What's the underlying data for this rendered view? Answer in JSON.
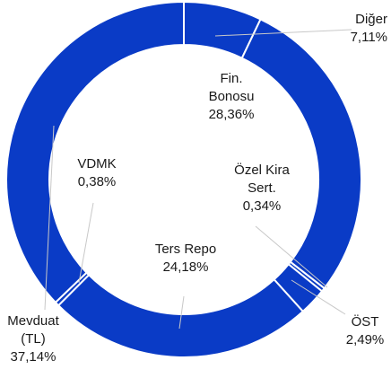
{
  "chart_data": {
    "type": "donut",
    "categories": [
      "Diğer",
      "Fin.\nBonosu",
      "Özel Kira\nSert.",
      "ÖST",
      "Ters Repo",
      "VDMK",
      "Mevduat\n(TL)"
    ],
    "values": [
      7.11,
      28.36,
      0.34,
      2.49,
      24.18,
      0.38,
      37.14
    ],
    "value_labels": [
      "7,11%",
      "28,36%",
      "0,34%",
      "2,49%",
      "24,18%",
      "0,38%",
      "37,14%"
    ],
    "color": "#0a3bc6"
  }
}
